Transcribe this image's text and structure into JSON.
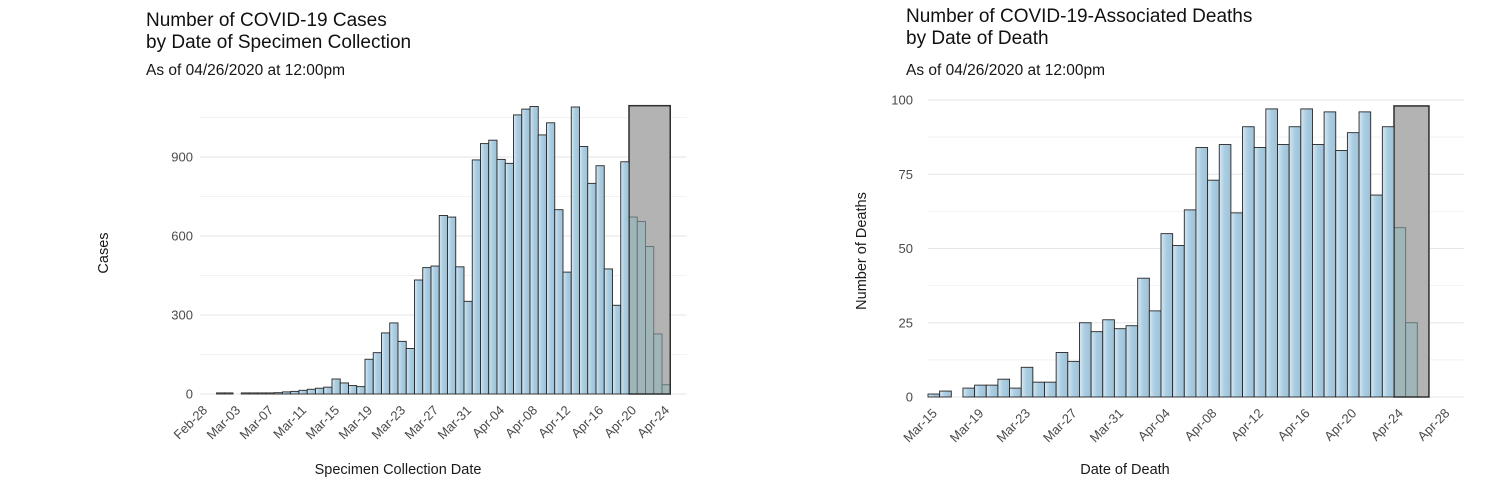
{
  "style": {
    "background": "#ffffff",
    "bar_fill": "#abcde2",
    "bar_fill_light": "#d7e8f2",
    "bar_fill_dark": "#9cc2d8",
    "bar_stroke": "#262626",
    "provisional_bar_fill": "#9fb5b7",
    "provisional_bar_stroke": "#5f6f71",
    "incomplete_box_fill": "#b3b3b3",
    "incomplete_box_stroke": "#2e2e2e",
    "grid_major": "#e6e6e6",
    "grid_minor": "#f2f2f2",
    "title_text": "#111111",
    "axis_title_text": "#1a1a1a",
    "tick_text": "#4a4a4a"
  },
  "chart_data": [
    {
      "type": "bar",
      "title": "Number of COVID-19 Cases by Date of Specimen Collection",
      "title_lines": [
        "Number of COVID-19 Cases",
        "by Date of Specimen Collection"
      ],
      "subtitle": "As of 04/26/2020 at 12:00pm",
      "xlabel": "Specimen Collection Date",
      "ylabel": "Cases",
      "yticks": [
        0,
        300,
        600,
        900
      ],
      "minor_gridlines": [
        150,
        450,
        750,
        1050
      ],
      "ylim": [
        0,
        1125
      ],
      "grid": "horizontal-only",
      "legend": false,
      "xtick_labels": [
        "Feb-28",
        "Mar-03",
        "Mar-07",
        "Mar-11",
        "Mar-15",
        "Mar-19",
        "Mar-23",
        "Mar-27",
        "Mar-31",
        "Apr-04",
        "Apr-08",
        "Apr-12",
        "Apr-16",
        "Apr-20",
        "Apr-24"
      ],
      "dates": [
        "Mar-01",
        "Mar-02",
        "Mar-03",
        "Mar-04",
        "Mar-05",
        "Mar-06",
        "Mar-07",
        "Mar-08",
        "Mar-09",
        "Mar-10",
        "Mar-11",
        "Mar-12",
        "Mar-13",
        "Mar-14",
        "Mar-15",
        "Mar-16",
        "Mar-17",
        "Mar-18",
        "Mar-19",
        "Mar-20",
        "Mar-21",
        "Mar-22",
        "Mar-23",
        "Mar-24",
        "Mar-25",
        "Mar-26",
        "Mar-27",
        "Mar-28",
        "Mar-29",
        "Mar-30",
        "Mar-31",
        "Apr-01",
        "Apr-02",
        "Apr-03",
        "Apr-04",
        "Apr-05",
        "Apr-06",
        "Apr-07",
        "Apr-08",
        "Apr-09",
        "Apr-10",
        "Apr-11",
        "Apr-12",
        "Apr-13",
        "Apr-14",
        "Apr-15",
        "Apr-16",
        "Apr-17",
        "Apr-18",
        "Apr-19"
      ],
      "values": [
        2,
        2,
        0,
        1,
        2,
        3,
        4,
        5,
        8,
        10,
        14,
        18,
        22,
        26,
        57,
        42,
        32,
        28,
        132,
        157,
        232,
        270,
        200,
        173,
        433,
        480,
        486,
        678,
        672,
        483,
        352,
        889,
        951,
        964,
        891,
        876,
        1060,
        1082,
        1092,
        984,
        1030,
        700,
        463,
        1090,
        940,
        800,
        867,
        475,
        337,
        882
      ],
      "provisional": {
        "dates": [
          "Apr-20",
          "Apr-21",
          "Apr-22",
          "Apr-23",
          "Apr-24"
        ],
        "values": [
          672,
          655,
          560,
          228,
          35
        ],
        "box_top": 1095
      }
    },
    {
      "type": "bar",
      "title": "Number of COVID-19-Associated Deaths by Date of Death",
      "title_lines": [
        "Number of COVID-19-Associated Deaths",
        "by Date of Death"
      ],
      "subtitle": "As of 04/26/2020 at 12:00pm",
      "xlabel": "Date of Death",
      "ylabel": "Number of Deaths",
      "yticks": [
        0,
        25,
        50,
        75,
        100
      ],
      "minor_gridlines": [
        12.5,
        37.5,
        62.5,
        87.5
      ],
      "ylim": [
        0,
        101
      ],
      "grid": "horizontal-only",
      "legend": false,
      "xtick_labels": [
        "Mar-15",
        "Mar-19",
        "Mar-23",
        "Mar-27",
        "Mar-31",
        "Apr-04",
        "Apr-08",
        "Apr-12",
        "Apr-16",
        "Apr-20",
        "Apr-24",
        "Apr-28"
      ],
      "dates": [
        "Mar-15",
        "Mar-16",
        "Mar-17",
        "Mar-18",
        "Mar-19",
        "Mar-20",
        "Mar-21",
        "Mar-22",
        "Mar-23",
        "Mar-24",
        "Mar-25",
        "Mar-26",
        "Mar-27",
        "Mar-28",
        "Mar-29",
        "Mar-30",
        "Mar-31",
        "Apr-01",
        "Apr-02",
        "Apr-03",
        "Apr-04",
        "Apr-05",
        "Apr-06",
        "Apr-07",
        "Apr-08",
        "Apr-09",
        "Apr-10",
        "Apr-11",
        "Apr-12",
        "Apr-13",
        "Apr-14",
        "Apr-15",
        "Apr-16",
        "Apr-17",
        "Apr-18",
        "Apr-19",
        "Apr-20",
        "Apr-21",
        "Apr-22",
        "Apr-23"
      ],
      "values": [
        1,
        2,
        0,
        3,
        4,
        4,
        6,
        3,
        10,
        5,
        5,
        15,
        12,
        25,
        22,
        26,
        23,
        24,
        40,
        29,
        55,
        51,
        63,
        84,
        73,
        85,
        62,
        91,
        84,
        97,
        85,
        91,
        97,
        85,
        96,
        83,
        89,
        96,
        68,
        91
      ],
      "provisional": {
        "dates": [
          "Apr-24",
          "Apr-25",
          "Apr-26"
        ],
        "values": [
          57,
          25,
          0
        ],
        "box_top": 98
      }
    }
  ]
}
